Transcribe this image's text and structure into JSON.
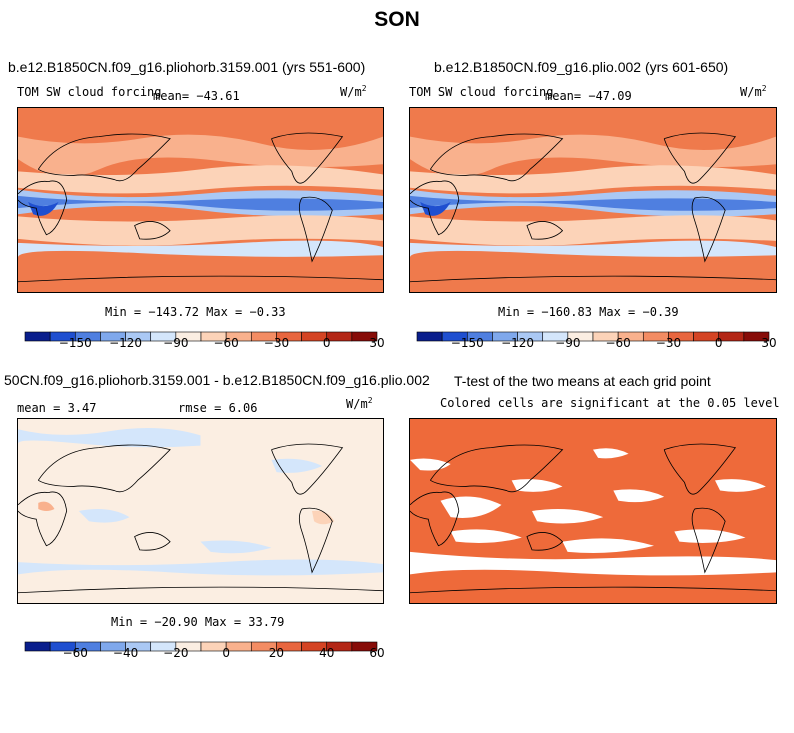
{
  "title": "SON",
  "panels": [
    {
      "title": "b.e12.B1850CN.f09_g16.pliohorb.3159.001 (yrs 551-600)",
      "variable": "TOM SW cloud forcing",
      "mean": "mean= −43.61",
      "units": "W/m",
      "units_sup": "2",
      "minmax": "Min = −143.72 Max =  −0.33"
    },
    {
      "title": "b.e12.B1850CN.f09_g16.plio.002 (yrs 601-650)",
      "variable": "TOM SW cloud forcing",
      "mean": "mean= −47.09",
      "units": "W/m",
      "units_sup": "2",
      "minmax": "Min = −160.83 Max =  −0.39"
    },
    {
      "title": "50CN.f09_g16.pliohorb.3159.001 - b.e12.B1850CN.f09_g16.plio.002",
      "mean": "mean =    3.47",
      "rmse": "rmse =    6.06",
      "units": "W/m",
      "units_sup": "2",
      "minmax": "Min = −20.90 Max =  33.79"
    },
    {
      "title": "T-test of the two means at each grid point",
      "subtitle": "Colored cells are significant at the 0.05 level"
    }
  ],
  "colorbar_abs": {
    "colors": [
      "#0a1e8c",
      "#1f4fd0",
      "#4f7fe0",
      "#7fa8ec",
      "#aac8f4",
      "#d4e6fb",
      "#fbeee2",
      "#fcd3b8",
      "#f9b18d",
      "#f38c63",
      "#e8663f",
      "#d44424",
      "#b32616",
      "#870c08"
    ],
    "tick_labels": [
      "−150",
      "−120",
      "−90",
      "−60",
      "−30",
      "0",
      "30"
    ]
  },
  "colorbar_diff": {
    "colors": [
      "#0a1e8c",
      "#1f4fd0",
      "#4f7fe0",
      "#7fa8ec",
      "#aac8f4",
      "#d4e6fb",
      "#fbeee2",
      "#fcd3b8",
      "#f9b18d",
      "#f38c63",
      "#e8663f",
      "#d44424",
      "#b32616",
      "#870c08"
    ],
    "tick_labels": [
      "−60",
      "−40",
      "−20",
      "0",
      "20",
      "40",
      "60"
    ]
  },
  "colors": {
    "significant": "#ee6a3a",
    "land_outline": "#000000"
  }
}
